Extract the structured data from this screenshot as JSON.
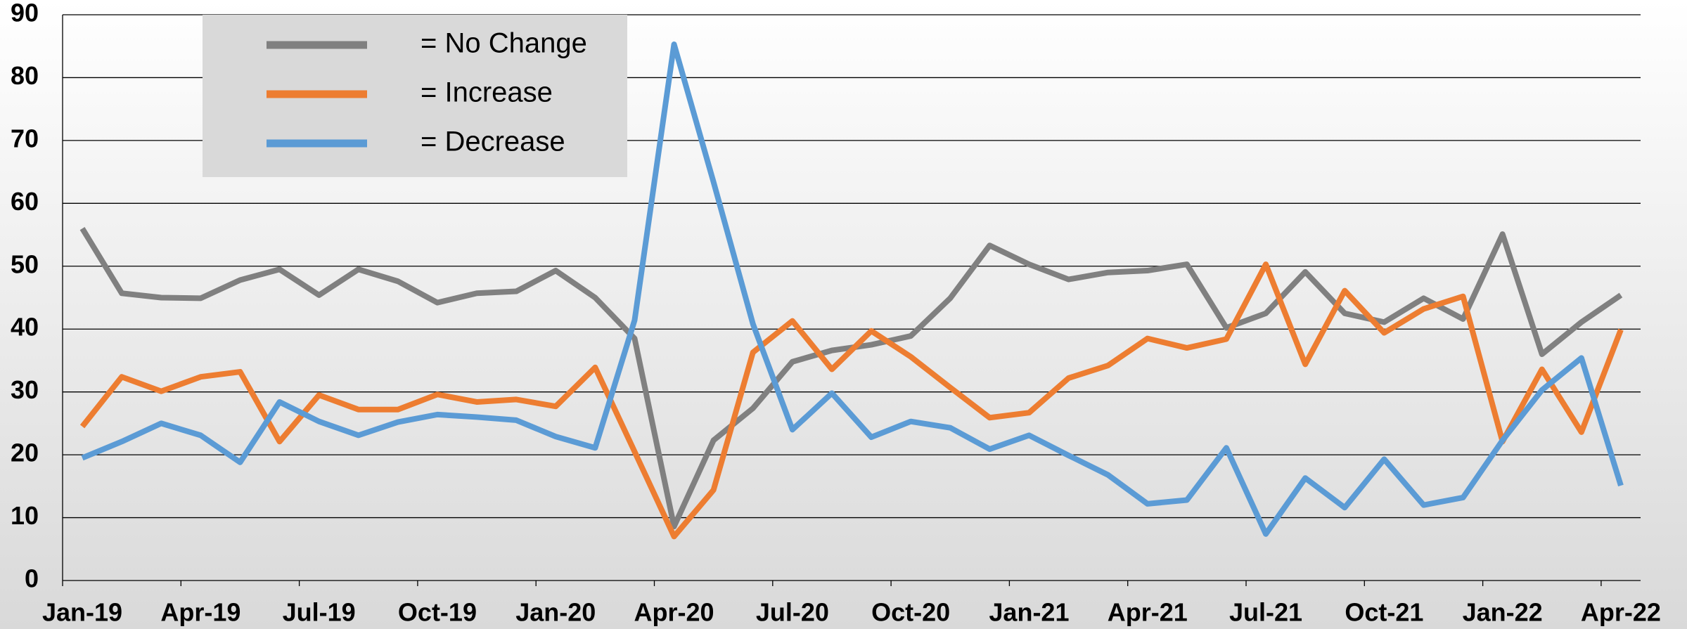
{
  "chart_data": {
    "type": "line",
    "categories": [
      "Jan-19",
      null,
      null,
      "Apr-19",
      null,
      null,
      "Jul-19",
      null,
      null,
      "Oct-19",
      null,
      null,
      "Jan-20",
      null,
      null,
      "Apr-20",
      null,
      null,
      "Jul-20",
      null,
      null,
      "Oct-20",
      null,
      null,
      "Jan-21",
      null,
      null,
      "Apr-21",
      null,
      null,
      "Jul-21",
      null,
      null,
      "Oct-21",
      null,
      null,
      "Jan-22",
      null,
      null,
      "Apr-22"
    ],
    "series": [
      {
        "name": "= No Change",
        "color": "#808080",
        "values": [
          56,
          45.7,
          45,
          44.9,
          47.8,
          49.5,
          45.4,
          49.5,
          47.6,
          44.2,
          45.7,
          46,
          49.3,
          45,
          38.5,
          8.6,
          22.3,
          27.4,
          34.8,
          36.6,
          37.5,
          38.9,
          44.9,
          53.3,
          50.3,
          47.9,
          49,
          49.3,
          50.3,
          40.2,
          42.5,
          49.1,
          42.5,
          41.1,
          44.9,
          41.6,
          55.1,
          36,
          41.1,
          45.4
        ]
      },
      {
        "name": "= Increase",
        "color": "#ed7d31",
        "values": [
          24.5,
          32.4,
          30.1,
          32.4,
          33.2,
          22.1,
          29.5,
          27.2,
          27.2,
          29.6,
          28.4,
          28.8,
          27.7,
          33.9,
          20.5,
          7,
          14.4,
          36.3,
          41.3,
          33.6,
          39.7,
          35.6,
          30.7,
          25.9,
          26.7,
          32.2,
          34.2,
          38.5,
          37,
          38.4,
          50.3,
          34.4,
          46.1,
          39.4,
          43.2,
          45.2,
          22.1,
          33.6,
          23.6,
          39.9
        ]
      },
      {
        "name": "= Decrease",
        "color": "#5b9bd5",
        "values": [
          19.5,
          22.1,
          25,
          23.1,
          18.8,
          28.4,
          25.3,
          23.1,
          25.2,
          26.4,
          26,
          25.5,
          22.9,
          21.1,
          41.4,
          85.3,
          63.4,
          40.8,
          24,
          29.8,
          22.8,
          25.3,
          24.3,
          20.9,
          23.1,
          19.9,
          16.8,
          12.2,
          12.8,
          21.1,
          7.4,
          16.3,
          11.6,
          19.3,
          12,
          13.2,
          22.3,
          30.3,
          35.4,
          15.1
        ]
      }
    ],
    "ylim": [
      0,
      90
    ],
    "yticks": [
      0,
      10,
      20,
      30,
      40,
      50,
      60,
      70,
      80,
      90
    ],
    "grid": true,
    "legend": "upper-left"
  }
}
